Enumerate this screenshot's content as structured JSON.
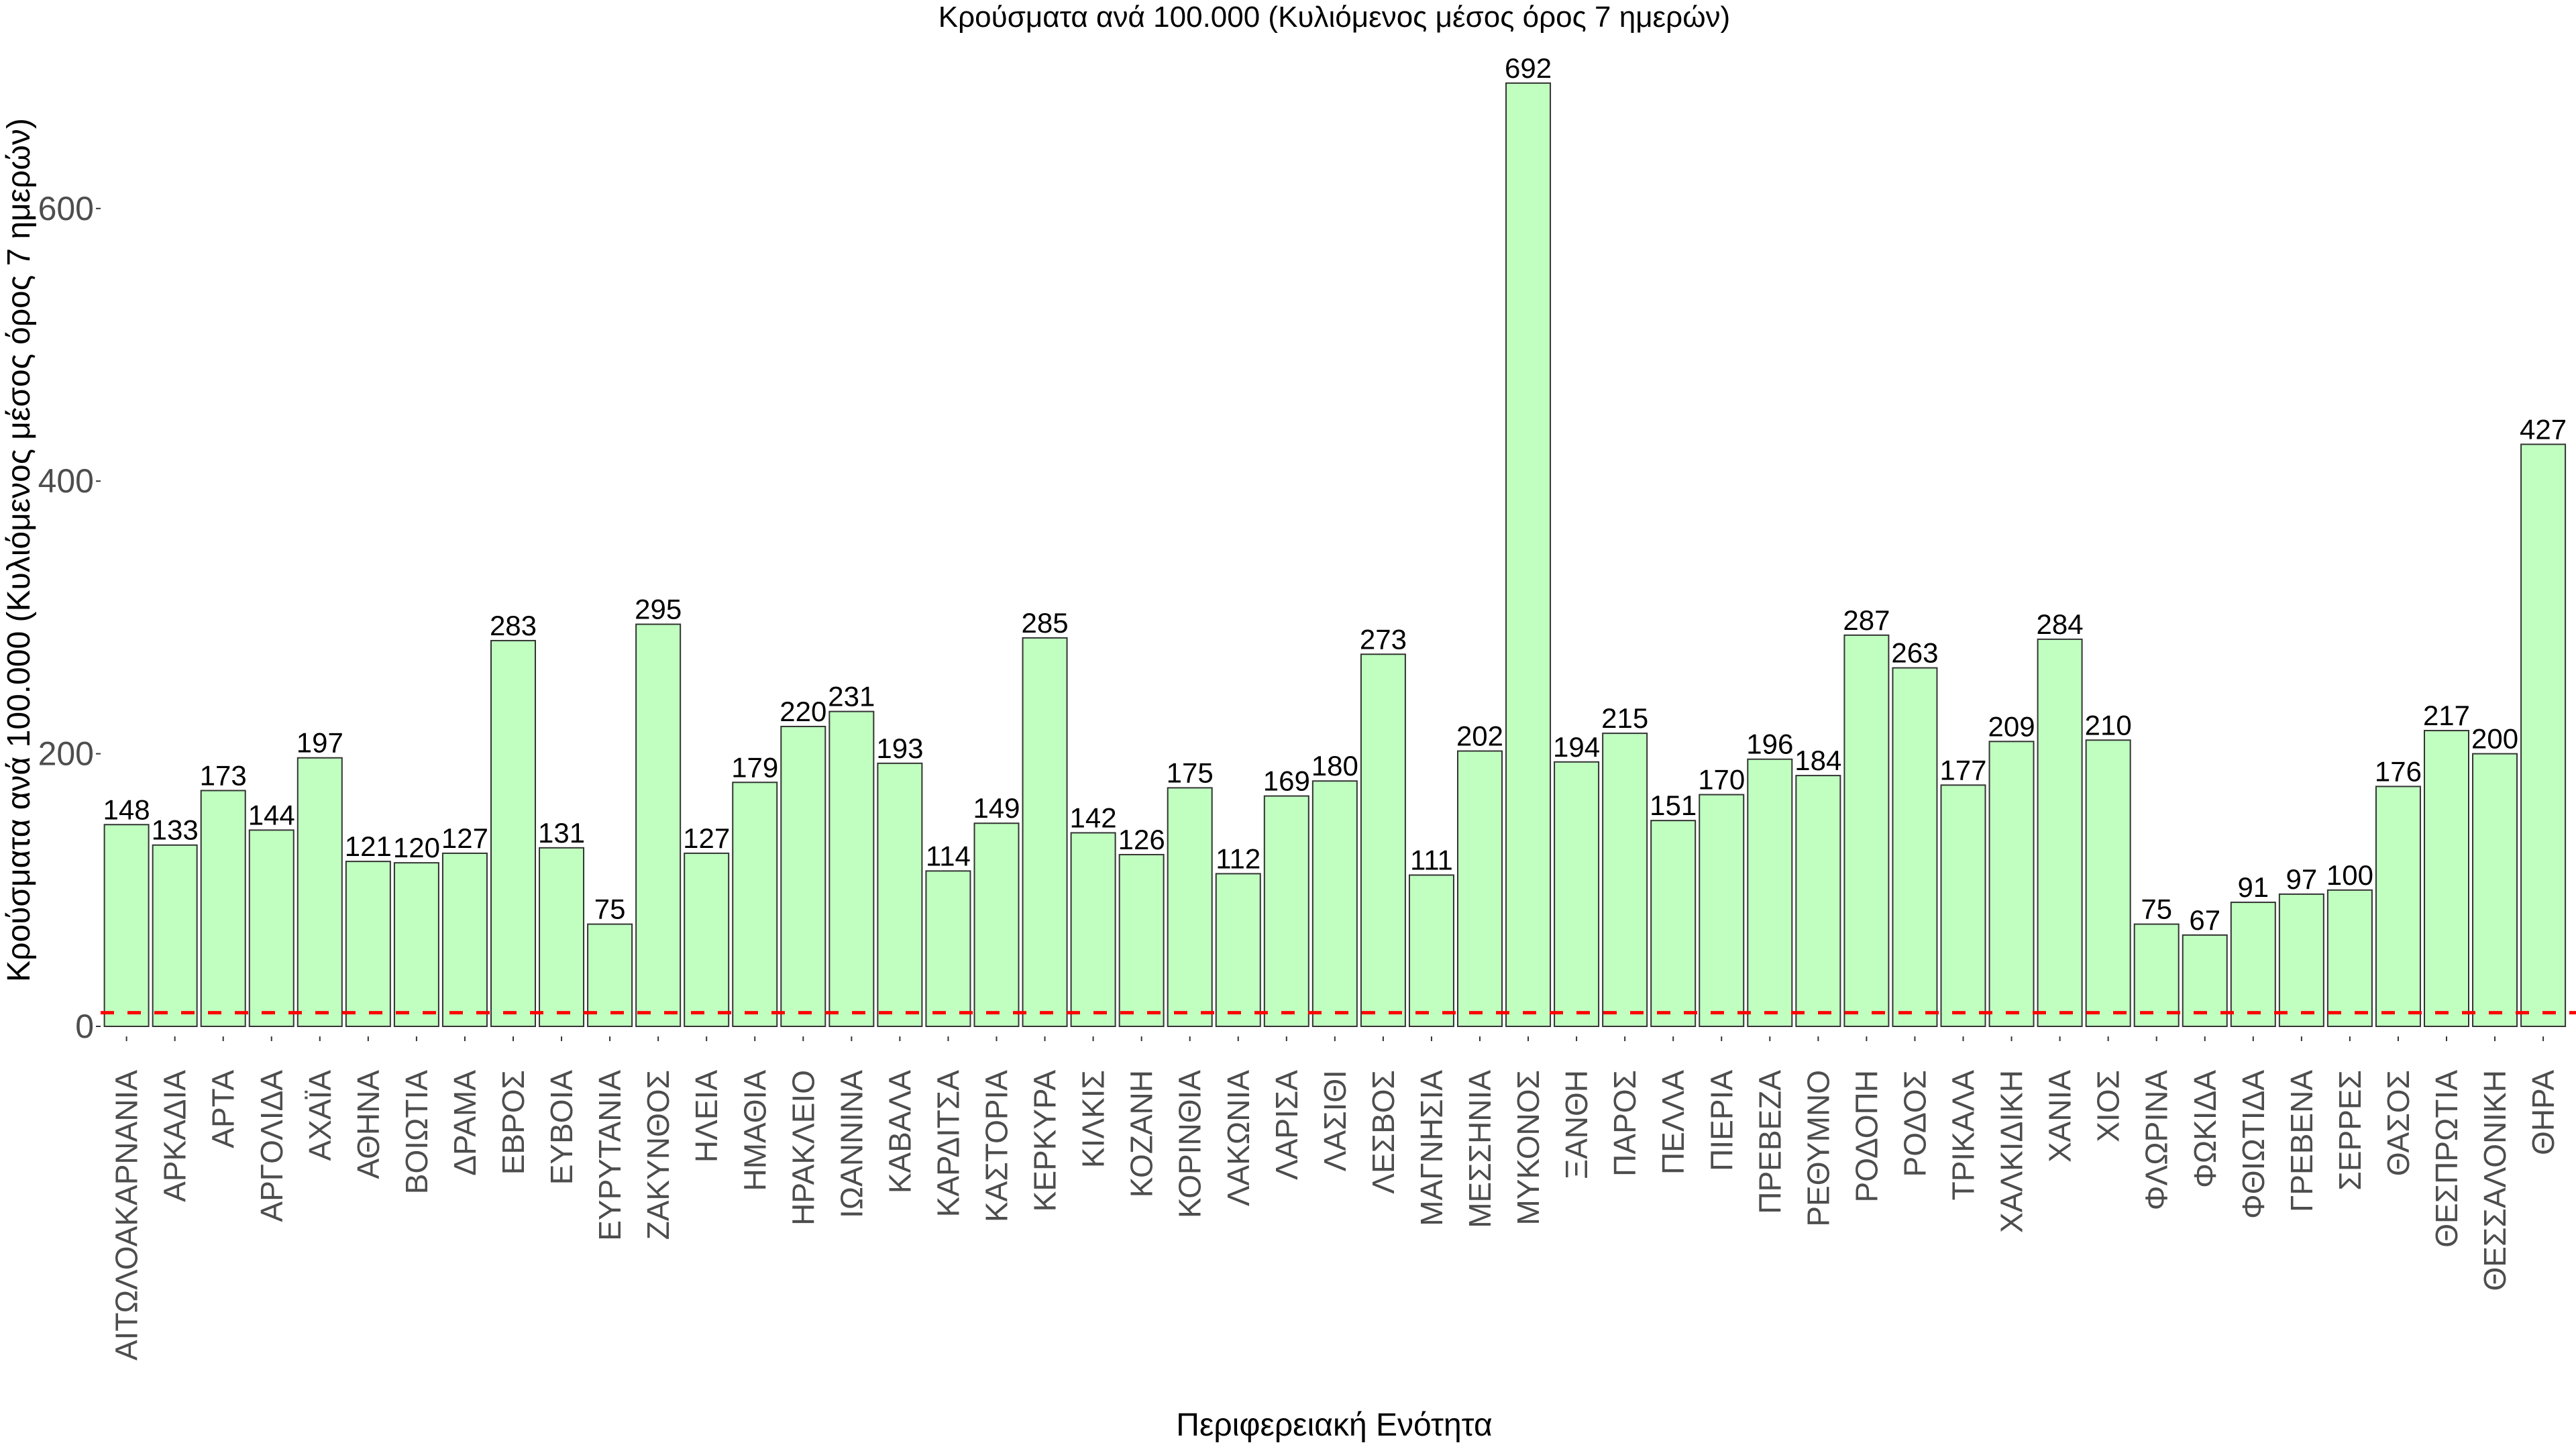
{
  "chart_data": {
    "type": "bar",
    "title": "Κρούσματα ανά 100.000 (Κυλιόμενος μέσος όρος 7 ημερών)",
    "xlabel": "Περιφερειακή Ενότητα",
    "ylabel": "Κρούσματα ανά 100.000 (Κυλιόμενος μέσος όρος 7 ημερών)",
    "ylim": [
      0,
      692
    ],
    "yticks": [
      0,
      200,
      400,
      600
    ],
    "grid": false,
    "reference_line": {
      "value": 10,
      "style": "dashed",
      "color": "#ff0000"
    },
    "bar_color": "#c1ffc1",
    "bar_border_color": "#333333",
    "categories": [
      "ΑΙΤΩΛΟΑΚΑΡΝΑΝΙΑ",
      "ΑΡΚΑΔΙΑ",
      "ΑΡΤΑ",
      "ΑΡΓΟΛΙΔΑ",
      "ΑΧΑΪΑ",
      "ΑΘΗΝΑ",
      "ΒΟΙΩΤΙΑ",
      "ΔΡΑΜΑ",
      "ΕΒΡΟΣ",
      "ΕΥΒΟΙΑ",
      "ΕΥΡΥΤΑΝΙΑ",
      "ΖΑΚΥΝΘΟΣ",
      "ΗΛΕΙΑ",
      "ΗΜΑΘΙΑ",
      "ΗΡΑΚΛΕΙΟ",
      "ΙΩΑΝΝΙΝΑ",
      "ΚΑΒΑΛΑ",
      "ΚΑΡΔΙΤΣΑ",
      "ΚΑΣΤΟΡΙΑ",
      "ΚΕΡΚΥΡΑ",
      "ΚΙΛΚΙΣ",
      "ΚΟΖΑΝΗ",
      "ΚΟΡΙΝΘΙΑ",
      "ΛΑΚΩΝΙΑ",
      "ΛΑΡΙΣΑ",
      "ΛΑΣΙΘΙ",
      "ΛΕΣΒΟΣ",
      "ΜΑΓΝΗΣΙΑ",
      "ΜΕΣΣΗΝΙΑ",
      "ΜΥΚΟΝΟΣ",
      "ΞΑΝΘΗ",
      "ΠΑΡΟΣ",
      "ΠΕΛΛΑ",
      "ΠΙΕΡΙΑ",
      "ΠΡΕΒΕΖΑ",
      "ΡΕΘΥΜΝΟ",
      "ΡΟΔΟΠΗ",
      "ΡΟΔΟΣ",
      "ΤΡΙΚΑΛΑ",
      "ΧΑΛΚΙΔΙΚΗ",
      "ΧΑΝΙΑ",
      "ΧΙΟΣ",
      "ΦΛΩΡΙΝΑ",
      "ΦΩΚΙΔΑ",
      "ΦΘΙΩΤΙΔΑ",
      "ΓΡΕΒΕΝΑ",
      "ΣΕΡΡΕΣ",
      "ΘΑΣΟΣ",
      "ΘΕΣΠΡΩΤΙΑ",
      "ΘΕΣΣΑΛΟΝΙΚΗ",
      "ΘΗΡΑ"
    ],
    "values": [
      148,
      133,
      173,
      144,
      197,
      121,
      120,
      127,
      283,
      131,
      75,
      295,
      127,
      179,
      220,
      231,
      193,
      114,
      149,
      285,
      142,
      126,
      175,
      112,
      169,
      180,
      273,
      111,
      202,
      692,
      194,
      215,
      151,
      170,
      196,
      184,
      287,
      263,
      177,
      209,
      284,
      210,
      75,
      67,
      91,
      97,
      100,
      176,
      217,
      200,
      427
    ]
  }
}
